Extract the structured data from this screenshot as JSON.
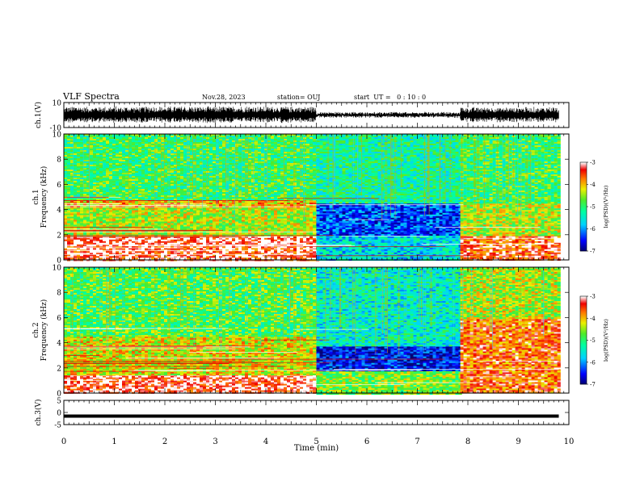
{
  "header": {
    "title": "VLF Spectra",
    "date": "Nov.28, 2023",
    "station": "station= OUJ",
    "start_ut": "start  UT =   0 : 10 : 0"
  },
  "chart_data": [
    {
      "type": "line",
      "panel": "ch1-waveform",
      "ylabel": "ch.1(V)",
      "ylim": [
        -10,
        10
      ],
      "y_ticks": [
        "10",
        "-10"
      ],
      "xlim": [
        0,
        10
      ],
      "x_ticks": [],
      "segments": [
        {
          "x": [
            0,
            5.0
          ],
          "amplitude_v": 6.5
        },
        {
          "x": [
            5.0,
            7.85
          ],
          "amplitude_v": 2.0
        },
        {
          "x": [
            7.85,
            9.8
          ],
          "amplitude_v": 6.0
        }
      ]
    },
    {
      "type": "heatmap",
      "panel": "ch1-spectrogram",
      "ylabel": "ch.1\nFrequency (kHz)",
      "ylim": [
        0,
        10
      ],
      "y_ticks": [
        "0",
        "2",
        "4",
        "6",
        "8",
        "10"
      ],
      "xlim": [
        0,
        10
      ],
      "data_xmax": 9.8,
      "colorbar": {
        "label": "log(PSD)(V²/Hz)",
        "range": [
          -7,
          -3
        ],
        "ticks": [
          "-3",
          "-4",
          "-5",
          "-6",
          "-7"
        ]
      },
      "log_psd_profile": [
        {
          "freq_khz": [
            0,
            1.2
          ],
          "x": [
            0,
            5.0
          ],
          "value": -3.3
        },
        {
          "freq_khz": [
            1.2,
            2.0
          ],
          "x": [
            0,
            5.0
          ],
          "value": -3.1
        },
        {
          "freq_khz": [
            2.0,
            4.2
          ],
          "x": [
            0,
            5.0
          ],
          "value": -4.4
        },
        {
          "freq_khz": [
            4.2,
            4.8
          ],
          "x": [
            0,
            5.0
          ],
          "value": -4.0
        },
        {
          "freq_khz": [
            4.8,
            10
          ],
          "x": [
            0,
            5.0
          ],
          "value": -4.9
        },
        {
          "freq_khz": [
            0,
            2.0
          ],
          "x": [
            5.0,
            7.85
          ],
          "value": -5.6
        },
        {
          "freq_khz": [
            2.0,
            4.5
          ],
          "x": [
            5.0,
            7.85
          ],
          "value": -6.3
        },
        {
          "freq_khz": [
            4.5,
            10
          ],
          "x": [
            5.0,
            7.85
          ],
          "value": -5.2
        },
        {
          "freq_khz": [
            0,
            2.0
          ],
          "x": [
            7.85,
            9.8
          ],
          "value": -3.4
        },
        {
          "freq_khz": [
            2.0,
            4.6
          ],
          "x": [
            7.85,
            9.8
          ],
          "value": -4.4
        },
        {
          "freq_khz": [
            4.6,
            10
          ],
          "x": [
            7.85,
            9.8
          ],
          "value": -4.9
        }
      ]
    },
    {
      "type": "heatmap",
      "panel": "ch2-spectrogram",
      "ylabel": "ch.2\nFrequency (kHz)",
      "ylim": [
        0,
        10
      ],
      "y_ticks": [
        "0",
        "2",
        "4",
        "6",
        "8",
        "10"
      ],
      "xlim": [
        0,
        10
      ],
      "data_xmax": 9.8,
      "colorbar": {
        "label": "log(PSD)(V²/Hz)",
        "range": [
          -7,
          -3
        ],
        "ticks": [
          "-3",
          "-4",
          "-5",
          "-6",
          "-7"
        ]
      },
      "log_psd_profile": [
        {
          "freq_khz": [
            0,
            1.5
          ],
          "x": [
            0,
            5.0
          ],
          "value": -3.2
        },
        {
          "freq_khz": [
            1.5,
            4.5
          ],
          "x": [
            0,
            5.0
          ],
          "value": -4.2
        },
        {
          "freq_khz": [
            4.5,
            10
          ],
          "x": [
            0,
            5.0
          ],
          "value": -4.8
        },
        {
          "freq_khz": [
            0,
            1.8
          ],
          "x": [
            5.0,
            7.85
          ],
          "value": -4.6
        },
        {
          "freq_khz": [
            1.8,
            3.8
          ],
          "x": [
            5.0,
            7.85
          ],
          "value": -6.5
        },
        {
          "freq_khz": [
            3.8,
            10
          ],
          "x": [
            5.0,
            7.85
          ],
          "value": -5.4
        },
        {
          "freq_khz": [
            0,
            6.0
          ],
          "x": [
            7.85,
            9.8
          ],
          "value": -3.6
        },
        {
          "freq_khz": [
            6.0,
            10
          ],
          "x": [
            7.85,
            9.8
          ],
          "value": -4.4
        }
      ]
    },
    {
      "type": "line",
      "panel": "ch3",
      "ylabel": "ch.3(V)",
      "ylim": [
        -5,
        5
      ],
      "y_ticks": [
        "5",
        "0",
        "-5"
      ],
      "xlim": [
        0,
        10
      ],
      "x_ticks": [
        "0",
        "1",
        "2",
        "3",
        "4",
        "5",
        "6",
        "7",
        "8",
        "9",
        "10"
      ],
      "xlabel": "Time (min)",
      "x": [
        0,
        9.8
      ],
      "y": [
        -1.5,
        -1.5
      ]
    }
  ]
}
